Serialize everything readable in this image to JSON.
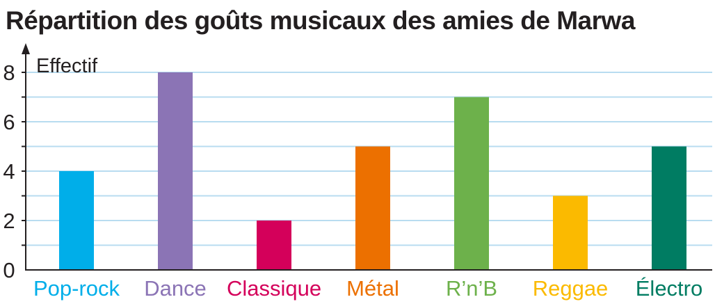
{
  "chart_data": {
    "type": "bar",
    "title": "Répartition des goûts musicaux des amies de Marwa",
    "ylabel": "Effectif",
    "xlabel": "",
    "categories": [
      "Pop-rock",
      "Dance",
      "Classique",
      "Métal",
      "R’n’B",
      "Reggae",
      "Électro"
    ],
    "values": [
      4,
      8,
      2,
      5,
      7,
      3,
      5
    ],
    "colors": [
      "#00aee9",
      "#8b74b5",
      "#d4005a",
      "#ec7000",
      "#6db14b",
      "#fbba00",
      "#007c62"
    ],
    "ylim": [
      0,
      8
    ],
    "yticks": [
      0,
      2,
      4,
      6,
      8
    ],
    "grid": true,
    "grid_color": "#b8dcf0",
    "axis_color": "#231f20"
  }
}
